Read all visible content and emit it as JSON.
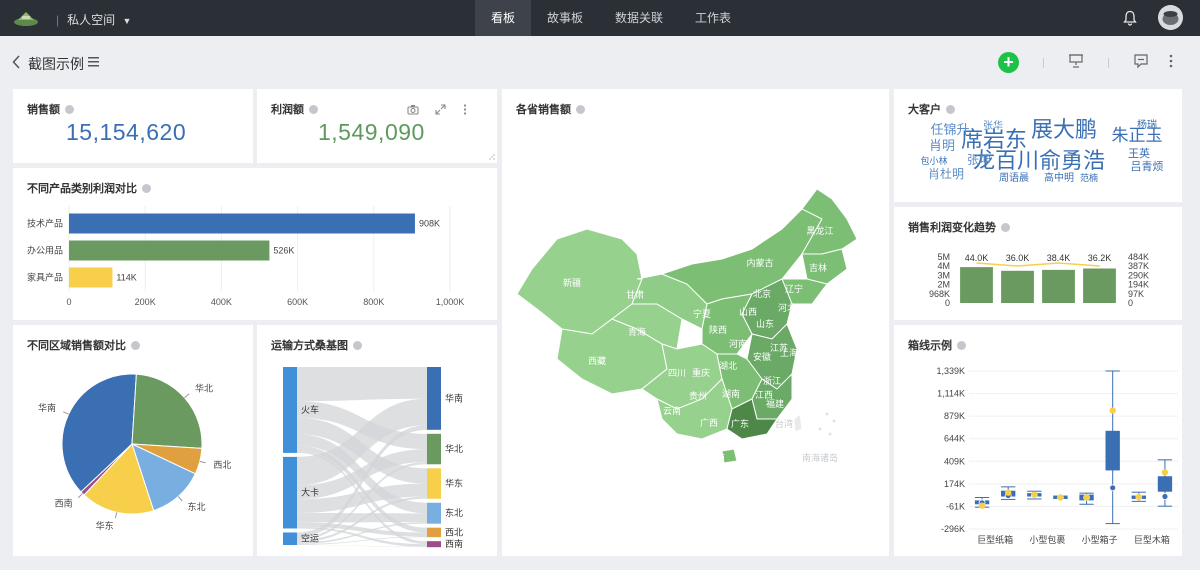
{
  "topbar": {
    "space_label": "私人空间",
    "tabs": [
      {
        "label": "看板",
        "active": true
      },
      {
        "label": "故事板"
      },
      {
        "label": "数据关联"
      },
      {
        "label": "工作表"
      }
    ]
  },
  "page": {
    "title": "截图示例"
  },
  "colors": {
    "blue": "#3a6fb4",
    "green": "#6a9a5f",
    "yellow": "#f8cf4a",
    "lightblue": "#78aee0",
    "orange": "#e0a040",
    "accent": "#1ec24a"
  },
  "kpis": [
    {
      "title": "销售额",
      "value": "15,154,620",
      "color": "#3a6fb4"
    },
    {
      "title": "利润额",
      "value": "1,549,090",
      "color": "#5e9a5c"
    }
  ],
  "titles": {
    "category_profit": "不同产品类别利润对比",
    "region_sales": "不同区域销售额对比",
    "sankey": "运输方式桑基图",
    "map": "各省销售额",
    "big_customers": "大客户",
    "trend": "销售利润变化趋势",
    "boxplot": "箱线示例"
  },
  "chart_data": [
    {
      "type": "bar",
      "orientation": "horizontal",
      "categories": [
        "技术产品",
        "办公用品",
        "家具产品"
      ],
      "values": [
        908,
        526,
        114
      ],
      "value_labels": [
        "908K",
        "526K",
        "114K"
      ],
      "colors": [
        "#3a6fb4",
        "#6a9a5f",
        "#f8cf4a"
      ],
      "xticks": [
        "0",
        "200K",
        "400K",
        "600K",
        "800K",
        "1,000K"
      ],
      "xlim": [
        0,
        1000
      ]
    },
    {
      "type": "pie",
      "slices": [
        {
          "label": "华南",
          "value": 38,
          "color": "#3a6fb4"
        },
        {
          "label": "华北",
          "value": 25,
          "color": "#6a9a5f"
        },
        {
          "label": "西北",
          "value": 6,
          "color": "#e0a040"
        },
        {
          "label": "东北",
          "value": 13,
          "color": "#78aee0"
        },
        {
          "label": "华东",
          "value": 17,
          "color": "#f8cf4a"
        },
        {
          "label": "西南",
          "value": 1,
          "color": "#9b4d8a"
        }
      ]
    },
    {
      "type": "sankey",
      "sources": [
        {
          "label": "火车",
          "weight": 48
        },
        {
          "label": "大卡",
          "weight": 40
        },
        {
          "label": "空运",
          "weight": 7
        }
      ],
      "targets": [
        {
          "label": "华南",
          "weight": 33,
          "color": "#3a6fb4"
        },
        {
          "label": "华北",
          "weight": 16,
          "color": "#6a9a5f"
        },
        {
          "label": "华东",
          "weight": 16,
          "color": "#f8cf4a"
        },
        {
          "label": "东北",
          "weight": 11,
          "color": "#78aee0"
        },
        {
          "label": "西北",
          "weight": 5,
          "color": "#e0a040"
        },
        {
          "label": "西南",
          "weight": 2,
          "color": "#9b4d8a"
        }
      ]
    },
    {
      "type": "line",
      "title": "销售利润变化趋势",
      "bar_labels": [
        "44.0K",
        "36.0K",
        "38.4K",
        "36.2K"
      ],
      "left_ticks": [
        "5M",
        "4M",
        "3M",
        "2M",
        "968K",
        "0"
      ],
      "right_ticks": [
        "484K",
        "387K",
        "290K",
        "194K",
        "97K",
        "0"
      ]
    },
    {
      "type": "boxplot",
      "categories": [
        "巨型纸箱",
        "小型包裹",
        "小型箱子",
        "巨型木箱"
      ],
      "yticks": [
        "1,339K",
        "1,114K",
        "879K",
        "644K",
        "409K",
        "174K",
        "-61K",
        "-296K"
      ],
      "ylim": [
        -296,
        1339
      ],
      "boxes": [
        {
          "min": -70,
          "q1": -40,
          "median": -10,
          "q3": 0,
          "max": 30,
          "mean": -25,
          "outlier": -55
        },
        {
          "min": 10,
          "q1": 40,
          "median": 60,
          "q3": 100,
          "max": 140,
          "mean": 50,
          "outlier": 80
        },
        {
          "min": 15,
          "q1": 40,
          "median": 55,
          "q3": 75,
          "max": 95,
          "mean": 55,
          "outlier": 60
        },
        {
          "min": 20,
          "q1": 25,
          "median": 30,
          "q3": 40,
          "max": 45,
          "mean": 30,
          "outlier": 30
        },
        {
          "min": -40,
          "q1": 0,
          "median": 30,
          "q3": 60,
          "max": 75,
          "mean": 30,
          "outlier": 30
        },
        {
          "min": -240,
          "q1": 310,
          "median": 480,
          "q3": 720,
          "max": 1339,
          "mean": 130,
          "outlier": 930
        },
        {
          "min": -10,
          "q1": 15,
          "median": 30,
          "q3": 50,
          "max": 85,
          "mean": 35,
          "outlier": 35
        },
        {
          "min": -60,
          "q1": 90,
          "median": 130,
          "q3": 250,
          "max": 420,
          "mean": 40,
          "outlier": 290
        }
      ]
    }
  ],
  "map": {
    "provinces": [
      "新疆",
      "西藏",
      "青海",
      "甘肃",
      "内蒙古",
      "黑龙江",
      "吉林",
      "辽宁",
      "北京",
      "河北",
      "山西",
      "山东",
      "宁夏",
      "陕西",
      "河南",
      "江苏",
      "安徽",
      "上海",
      "四川",
      "重庆",
      "湖北",
      "浙江",
      "贵州",
      "湖南",
      "江西",
      "福建",
      "云南",
      "广西",
      "广东",
      "台湾",
      "海南",
      "南海诸岛"
    ]
  },
  "wordcloud": {
    "words": [
      {
        "text": "席岩东",
        "size": 22,
        "color": "#3a6fb4"
      },
      {
        "text": "展大鹏",
        "size": 22,
        "color": "#3a6fb4"
      },
      {
        "text": "龙百川",
        "size": 22,
        "color": "#3a6fb4"
      },
      {
        "text": "俞勇浩",
        "size": 22,
        "color": "#3a6fb4"
      },
      {
        "text": "朱正玉",
        "size": 17,
        "color": "#3a6fb4"
      },
      {
        "text": "任锦升",
        "size": 13,
        "color": "#5d8ec9"
      },
      {
        "text": "肖明",
        "size": 13,
        "color": "#5d8ec9"
      },
      {
        "text": "张坤",
        "size": 12,
        "color": "#5d8ec9"
      },
      {
        "text": "肖杜明",
        "size": 12,
        "color": "#5d8ec9"
      },
      {
        "text": "王英",
        "size": 11,
        "color": "#3a6fb4"
      },
      {
        "text": "吕青烦",
        "size": 11,
        "color": "#3a6fb4"
      },
      {
        "text": "杨瑞",
        "size": 10,
        "color": "#3a6fb4"
      },
      {
        "text": "张华",
        "size": 10,
        "color": "#5d8ec9"
      },
      {
        "text": "包小林",
        "size": 9,
        "color": "#3a6fb4"
      },
      {
        "text": "周语晨",
        "size": 10,
        "color": "#3a6fb4"
      },
      {
        "text": "高中明",
        "size": 10,
        "color": "#3a6fb4"
      },
      {
        "text": "范楠",
        "size": 9,
        "color": "#3a6fb4"
      }
    ]
  }
}
